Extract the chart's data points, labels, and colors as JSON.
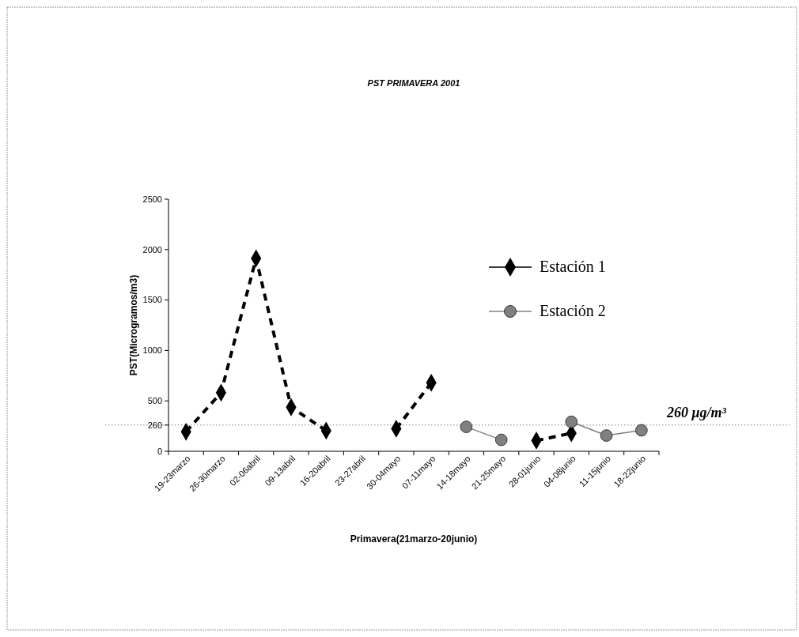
{
  "chart_data": {
    "type": "line",
    "title": "PST PRIMAVERA 2001",
    "xlabel": "Primavera(21marzo-20junio)",
    "ylabel": "PST(Microgramos/m3)",
    "categories": [
      "19-23marzo",
      "26-30marzo",
      "02-06abril",
      "09-13abril",
      "16-20abril",
      "23-27abril",
      "30-04mayo",
      "07-11mayo",
      "14-18mayo",
      "21-25mayo",
      "28-01junio",
      "04-08junio",
      "11-15junio",
      "18-22junio"
    ],
    "series": [
      {
        "name": "Estación 1",
        "color": "#000000",
        "marker": "diamond",
        "line_style": "dashed",
        "values": [
          193,
          581,
          1913,
          437,
          204,
          null,
          224,
          679,
          null,
          null,
          106,
          179,
          null,
          null
        ]
      },
      {
        "name": "Estación 2",
        "color": "#808080",
        "marker": "circle",
        "line_style": "solid",
        "values": [
          null,
          null,
          null,
          null,
          null,
          null,
          null,
          null,
          242,
          113,
          null,
          292,
          156,
          208
        ]
      }
    ],
    "ylim": [
      0,
      2500
    ],
    "yticks": [
      0,
      {
        "value": 260,
        "label": "260"
      },
      500,
      1000,
      1500,
      2000,
      2500
    ],
    "ref_lines": [
      {
        "axis": "y",
        "value": 260,
        "label": "260 μg/m³",
        "line_style": "dotted",
        "color": "#808080"
      }
    ],
    "legend": "top right",
    "grid": false
  }
}
